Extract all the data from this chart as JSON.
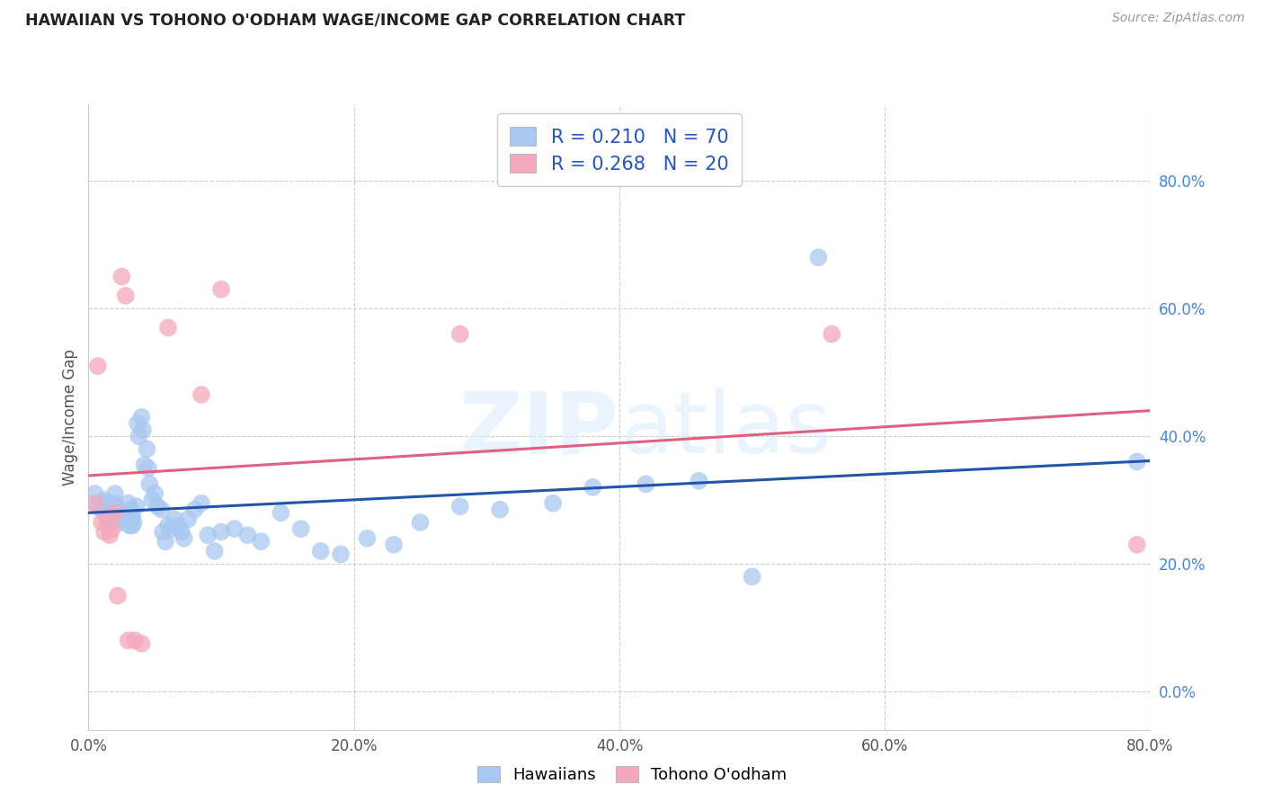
{
  "title": "HAWAIIAN VS TOHONO O'ODHAM WAGE/INCOME GAP CORRELATION CHART",
  "source": "Source: ZipAtlas.com",
  "ylabel": "Wage/Income Gap",
  "xlim": [
    0.0,
    0.8
  ],
  "ylim": [
    -0.06,
    0.92
  ],
  "yticks": [
    0.0,
    0.2,
    0.4,
    0.6,
    0.8
  ],
  "xticks": [
    0.0,
    0.2,
    0.4,
    0.6,
    0.8
  ],
  "xtick_labels": [
    "0.0%",
    "20.0%",
    "40.0%",
    "60.0%",
    "80.0%"
  ],
  "ytick_labels": [
    "0.0%",
    "20.0%",
    "40.0%",
    "60.0%",
    "80.0%"
  ],
  "blue_R": 0.21,
  "blue_N": 70,
  "pink_R": 0.268,
  "pink_N": 20,
  "blue_color": "#A8C8F0",
  "pink_color": "#F4A8BC",
  "blue_line_color": "#2255AA",
  "pink_line_color": "#E06080",
  "blue_x": [
    0.005,
    0.007,
    0.01,
    0.012,
    0.013,
    0.015,
    0.016,
    0.017,
    0.018,
    0.02,
    0.02,
    0.021,
    0.022,
    0.023,
    0.025,
    0.026,
    0.028,
    0.03,
    0.03,
    0.031,
    0.032,
    0.033,
    0.033,
    0.034,
    0.036,
    0.037,
    0.038,
    0.04,
    0.041,
    0.042,
    0.044,
    0.045,
    0.046,
    0.048,
    0.05,
    0.052,
    0.055,
    0.056,
    0.058,
    0.06,
    0.062,
    0.065,
    0.068,
    0.07,
    0.072,
    0.075,
    0.08,
    0.085,
    0.09,
    0.095,
    0.1,
    0.11,
    0.12,
    0.13,
    0.145,
    0.16,
    0.175,
    0.19,
    0.21,
    0.23,
    0.25,
    0.28,
    0.31,
    0.35,
    0.38,
    0.42,
    0.46,
    0.5,
    0.55,
    0.79
  ],
  "blue_y": [
    0.31,
    0.29,
    0.285,
    0.3,
    0.295,
    0.275,
    0.28,
    0.27,
    0.285,
    0.31,
    0.295,
    0.29,
    0.285,
    0.27,
    0.265,
    0.275,
    0.28,
    0.295,
    0.27,
    0.26,
    0.285,
    0.275,
    0.26,
    0.265,
    0.29,
    0.42,
    0.4,
    0.43,
    0.41,
    0.355,
    0.38,
    0.35,
    0.325,
    0.3,
    0.31,
    0.29,
    0.285,
    0.25,
    0.235,
    0.26,
    0.255,
    0.27,
    0.26,
    0.25,
    0.24,
    0.27,
    0.285,
    0.295,
    0.245,
    0.22,
    0.25,
    0.255,
    0.245,
    0.235,
    0.28,
    0.255,
    0.22,
    0.215,
    0.24,
    0.23,
    0.265,
    0.29,
    0.285,
    0.295,
    0.32,
    0.325,
    0.33,
    0.18,
    0.68,
    0.36
  ],
  "pink_x": [
    0.005,
    0.007,
    0.01,
    0.012,
    0.014,
    0.016,
    0.018,
    0.02,
    0.022,
    0.025,
    0.028,
    0.03,
    0.035,
    0.04,
    0.06,
    0.085,
    0.1,
    0.28,
    0.56,
    0.79
  ],
  "pink_y": [
    0.295,
    0.51,
    0.265,
    0.25,
    0.27,
    0.245,
    0.255,
    0.28,
    0.15,
    0.65,
    0.62,
    0.08,
    0.08,
    0.075,
    0.57,
    0.465,
    0.63,
    0.56,
    0.56,
    0.23
  ]
}
